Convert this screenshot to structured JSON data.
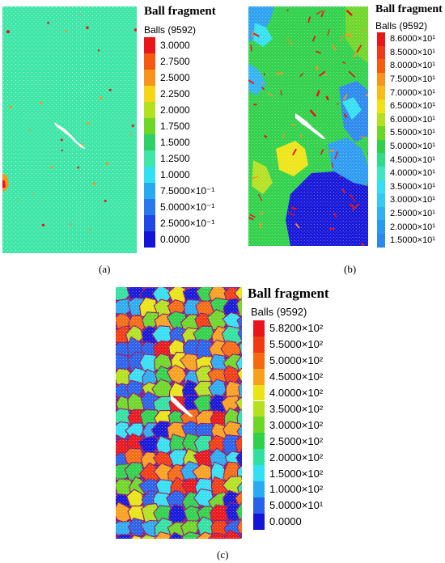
{
  "panels": [
    {
      "id": "a",
      "title": "Ball fragment",
      "subtitle": "Balls (9592)",
      "caption": "(a)",
      "legend": [
        {
          "label": "3.0000",
          "color": "#e8151a"
        },
        {
          "label": "2.7500",
          "color": "#f55a0f"
        },
        {
          "label": "2.5000",
          "color": "#f8941e"
        },
        {
          "label": "2.2500",
          "color": "#f5d515"
        },
        {
          "label": "2.0000",
          "color": "#b4e01e"
        },
        {
          "label": "1.7500",
          "color": "#6ed626"
        },
        {
          "label": "1.5000",
          "color": "#2fd06a"
        },
        {
          "label": "1.2500",
          "color": "#3fe6a8"
        },
        {
          "label": "1.0000",
          "color": "#33dff2"
        },
        {
          "label": "7.5000×10⁻¹",
          "color": "#28aaf0"
        },
        {
          "label": "5.0000×10⁻¹",
          "color": "#2878ee"
        },
        {
          "label": "2.5000×10⁻¹",
          "color": "#1f48e6"
        },
        {
          "label": "0.0000",
          "color": "#1414d8"
        }
      ]
    },
    {
      "id": "b",
      "title": "Ball fragment",
      "subtitle": "Balls (9592)",
      "caption": "(b)",
      "legend": [
        {
          "label": "8.6000×10¹",
          "color": "#e8151a"
        },
        {
          "label": "8.5000×10¹",
          "color": "#f2381a"
        },
        {
          "label": "8.0000×10¹",
          "color": "#f55a0f"
        },
        {
          "label": "7.5000×10¹",
          "color": "#f8941e"
        },
        {
          "label": "7.0000×10¹",
          "color": "#f7bc15"
        },
        {
          "label": "6.5000×10¹",
          "color": "#eee415"
        },
        {
          "label": "6.0000×10¹",
          "color": "#b4e01e"
        },
        {
          "label": "5.5000×10¹",
          "color": "#6ed626"
        },
        {
          "label": "5.0000×10¹",
          "color": "#2fd04a"
        },
        {
          "label": "4.5000×10¹",
          "color": "#30dc8a"
        },
        {
          "label": "4.0000×10¹",
          "color": "#3fe6c0"
        },
        {
          "label": "3.5000×10¹",
          "color": "#33dff2"
        },
        {
          "label": "3.0000×10¹",
          "color": "#38c8f4"
        },
        {
          "label": "2.5000×10¹",
          "color": "#30b2f2"
        },
        {
          "label": "2.0000×10¹",
          "color": "#289bf0"
        },
        {
          "label": "1.5000×10¹",
          "color": "#2a88ee"
        }
      ]
    },
    {
      "id": "c",
      "title": "Ball fragment",
      "subtitle": "Balls (9592)",
      "caption": "(c)",
      "legend": [
        {
          "label": "5.8200×10²",
          "color": "#e8151a"
        },
        {
          "label": "5.5000×10²",
          "color": "#f23a12"
        },
        {
          "label": "5.0000×10²",
          "color": "#f56a10"
        },
        {
          "label": "4.5000×10²",
          "color": "#f8a01e"
        },
        {
          "label": "4.0000×10²",
          "color": "#e8e415"
        },
        {
          "label": "3.5000×10²",
          "color": "#b4e01e"
        },
        {
          "label": "3.0000×10²",
          "color": "#6ed626"
        },
        {
          "label": "2.5000×10²",
          "color": "#2fd04a"
        },
        {
          "label": "2.0000×10²",
          "color": "#2fe0a0"
        },
        {
          "label": "1.5000×10²",
          "color": "#33dff2"
        },
        {
          "label": "1.0000×10²",
          "color": "#2aaaf0"
        },
        {
          "label": "5.0000×10¹",
          "color": "#2860ea"
        },
        {
          "label": "0.0000",
          "color": "#1414d8"
        }
      ]
    }
  ]
}
